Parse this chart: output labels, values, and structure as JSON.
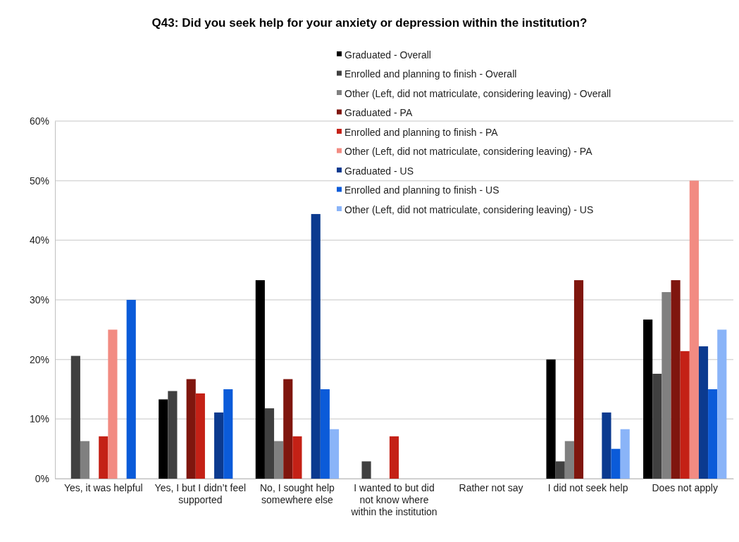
{
  "chart_data": {
    "type": "bar",
    "title": "Q43: Did you seek help for your anxiety or depression within the institution?",
    "categories": [
      "Yes, it was helpful",
      "Yes, I but I didn’t feel supported",
      "No, I sought help somewhere else",
      "I wanted to but did not know where within the institution",
      "Rather not say",
      "I did not seek help",
      "Does not apply"
    ],
    "series": [
      {
        "name": "Graduated - Overall",
        "color": "#000000",
        "values": [
          0,
          13.3,
          33.3,
          0,
          0,
          20,
          26.7
        ]
      },
      {
        "name": "Enrolled and planning to finish - Overall",
        "color": "#404040",
        "values": [
          20.6,
          14.7,
          11.8,
          2.9,
          0,
          2.9,
          17.6
        ]
      },
      {
        "name": "Other (Left, did not matriculate, considering leaving) - Overall",
        "color": "#808080",
        "values": [
          6.3,
          0,
          6.3,
          0,
          0,
          6.3,
          31.3
        ]
      },
      {
        "name": "Graduated - PA",
        "color": "#7f160e",
        "values": [
          0,
          16.7,
          16.7,
          0,
          0,
          33.3,
          33.3
        ]
      },
      {
        "name": "Enrolled and planning to finish - PA",
        "color": "#c42116",
        "values": [
          7.1,
          14.3,
          7.1,
          7.1,
          0,
          0,
          21.4
        ]
      },
      {
        "name": "Other (Left, did not matriculate, considering leaving) - PA",
        "color": "#f28b82",
        "values": [
          25,
          0,
          0,
          0,
          0,
          0,
          50
        ]
      },
      {
        "name": "Graduated - US",
        "color": "#0b3a8f",
        "values": [
          0,
          11.1,
          44.4,
          0,
          0,
          11.1,
          22.2
        ]
      },
      {
        "name": "Enrolled and planning to finish - US",
        "color": "#0b5bd9",
        "values": [
          30,
          15,
          15,
          0,
          0,
          5,
          15
        ]
      },
      {
        "name": "Other (Left, did not matriculate, considering leaving) - US",
        "color": "#8ab4f8",
        "values": [
          0,
          0,
          8.3,
          0,
          0,
          8.3,
          25
        ]
      }
    ],
    "ylim": [
      0,
      60
    ],
    "yticks": [
      {
        "value": 0,
        "label": "0%"
      },
      {
        "value": 10,
        "label": "10%"
      },
      {
        "value": 20,
        "label": "20%"
      },
      {
        "value": 30,
        "label": "30%"
      },
      {
        "value": 40,
        "label": "40%"
      },
      {
        "value": 50,
        "label": "50%"
      },
      {
        "value": 60,
        "label": "60%"
      }
    ],
    "grid": "y",
    "legend": "top right"
  }
}
